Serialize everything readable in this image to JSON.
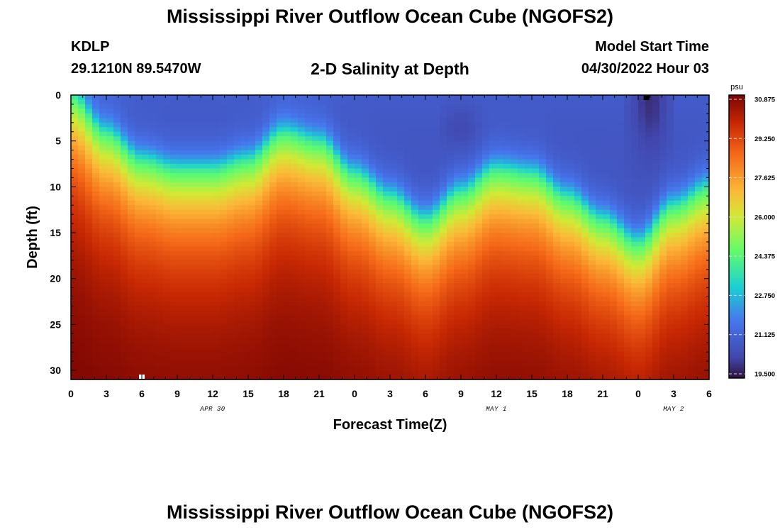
{
  "header": {
    "title": "Mississippi River Outflow Ocean Cube (NGOFS2)",
    "station": "KDLP",
    "latlon": "29.1210N  89.5470W",
    "subtitle": "2-D Salinity at Depth",
    "start_label": "Model Start Time",
    "start_value": "04/30/2022 Hour 03"
  },
  "footer": {
    "title": "Mississippi River Outflow Ocean Cube (NGOFS2)"
  },
  "chart_data": {
    "type": "heatmap",
    "title": "2-D Salinity at Depth",
    "xlabel": "Forecast Time(Z)",
    "ylabel": "Depth (ft)",
    "x_hours_range": [
      0,
      54
    ],
    "x_tick_labels": [
      "0",
      "3",
      "6",
      "9",
      "12",
      "15",
      "18",
      "21",
      "0",
      "3",
      "6",
      "9",
      "12",
      "15",
      "18",
      "21",
      "0",
      "3",
      "6"
    ],
    "date_labels": [
      {
        "label": "APR 30",
        "at_hour": 12
      },
      {
        "label": "MAY 1",
        "at_hour": 36
      },
      {
        "label": "MAY 2",
        "at_hour": 51
      }
    ],
    "y_range": [
      0,
      31
    ],
    "y_ticks": [
      0,
      5,
      10,
      15,
      20,
      25,
      30
    ],
    "colorbar": {
      "unit": "psu",
      "min": 19.5,
      "max": 30.875,
      "ticks": [
        "30.875",
        "29.250",
        "27.625",
        "26.000",
        "24.375",
        "22.750",
        "21.125",
        "19.500"
      ]
    },
    "halocline_depth_ft": {
      "hours": [
        0,
        3,
        6,
        9,
        12,
        15,
        18,
        21,
        24,
        27,
        30,
        33,
        36,
        39,
        42,
        45,
        48,
        51,
        54
      ],
      "depth": [
        0,
        4,
        7,
        8,
        8,
        7,
        4,
        5,
        8.5,
        11,
        13.5,
        10.5,
        8,
        8.5,
        11,
        13.5,
        16,
        12,
        10
      ]
    },
    "grid": false
  }
}
